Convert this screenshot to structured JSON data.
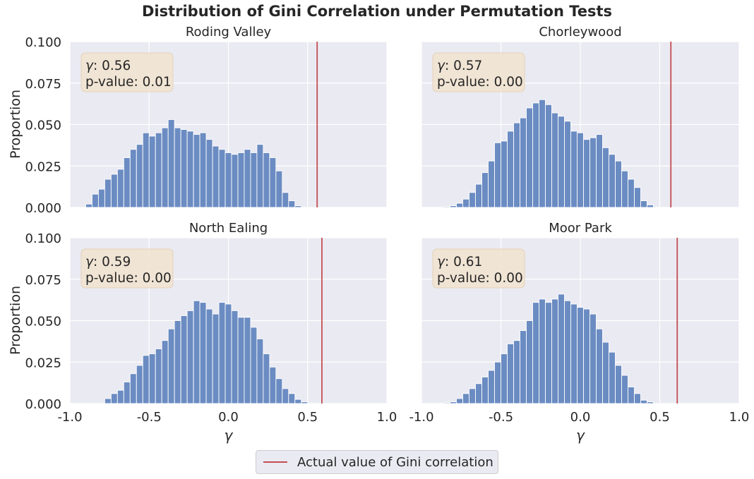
{
  "figure": {
    "title": "Distribution of Gini Correlation under Permutation Tests",
    "legend_label": "Actual value of Gini correlation",
    "colors": {
      "bar": "#6b8cc2",
      "actual_line": "#c44e52",
      "plot_bg": "#eaeaf2",
      "grid": "#ffffff",
      "annotation_box": "#f1e3cf"
    }
  },
  "chart_data": [
    {
      "type": "bar",
      "title": "Roding Valley",
      "ylabel": "Proportion",
      "xlabel": "",
      "xlim": [
        -1.0,
        1.0
      ],
      "ylim": [
        0.0,
        0.1
      ],
      "xticks": [
        "-1.0",
        "-0.5",
        "0.0",
        "0.5",
        "1.0"
      ],
      "yticks": [
        "0.000",
        "0.025",
        "0.050",
        "0.075",
        "0.100"
      ],
      "bin_start": -0.9,
      "bin_width": 0.04,
      "values": [
        0.002,
        0.008,
        0.011,
        0.017,
        0.02,
        0.023,
        0.03,
        0.035,
        0.038,
        0.045,
        0.043,
        0.045,
        0.048,
        0.053,
        0.048,
        0.047,
        0.046,
        0.044,
        0.045,
        0.041,
        0.037,
        0.035,
        0.033,
        0.032,
        0.033,
        0.035,
        0.033,
        0.038,
        0.033,
        0.03,
        0.022,
        0.009,
        0.004,
        0.001
      ],
      "actual_value": 0.56,
      "annotation": {
        "gamma_label": ": 0.56",
        "p_label": "p-value: 0.01"
      }
    },
    {
      "type": "bar",
      "title": "Chorleywood",
      "ylabel": "",
      "xlabel": "",
      "xlim": [
        -1.0,
        1.0
      ],
      "ylim": [
        0.0,
        0.1
      ],
      "xticks": [
        "-1.0",
        "-0.5",
        "0.0",
        "0.5",
        "1.0"
      ],
      "yticks": [
        "0.000",
        "0.025",
        "0.050",
        "0.075",
        "0.100"
      ],
      "bin_start": -0.86,
      "bin_width": 0.04,
      "values": [
        0.0005,
        0.001,
        0.0025,
        0.005,
        0.009,
        0.014,
        0.021,
        0.028,
        0.039,
        0.04,
        0.046,
        0.051,
        0.054,
        0.06,
        0.063,
        0.065,
        0.062,
        0.057,
        0.055,
        0.052,
        0.046,
        0.045,
        0.041,
        0.042,
        0.044,
        0.036,
        0.032,
        0.028,
        0.022,
        0.017,
        0.012,
        0.004,
        0.0015
      ],
      "actual_value": 0.57,
      "annotation": {
        "gamma_label": ": 0.57",
        "p_label": "p-value: 0.00"
      }
    },
    {
      "type": "bar",
      "title": "North Ealing",
      "ylabel": "Proportion",
      "xlabel": "γ",
      "xlim": [
        -1.0,
        1.0
      ],
      "ylim": [
        0.0,
        0.1
      ],
      "xticks": [
        "-1.0",
        "-0.5",
        "0.0",
        "0.5",
        "1.0"
      ],
      "yticks": [
        "0.000",
        "0.025",
        "0.050",
        "0.075",
        "0.100"
      ],
      "bin_start": -0.78,
      "bin_width": 0.04,
      "values": [
        0.003,
        0.006,
        0.008,
        0.013,
        0.018,
        0.023,
        0.029,
        0.03,
        0.033,
        0.038,
        0.045,
        0.05,
        0.053,
        0.056,
        0.062,
        0.061,
        0.057,
        0.054,
        0.061,
        0.06,
        0.056,
        0.052,
        0.052,
        0.046,
        0.039,
        0.03,
        0.022,
        0.015,
        0.009,
        0.006,
        0.0025,
        0.001
      ],
      "actual_value": 0.59,
      "annotation": {
        "gamma_label": ": 0.59",
        "p_label": "p-value: 0.00"
      }
    },
    {
      "type": "bar",
      "title": "Moor Park",
      "ylabel": "",
      "xlabel": "γ",
      "xlim": [
        -1.0,
        1.0
      ],
      "ylim": [
        0.0,
        0.1
      ],
      "xticks": [
        "-1.0",
        "-0.5",
        "0.0",
        "0.5",
        "1.0"
      ],
      "yticks": [
        "0.000",
        "0.025",
        "0.050",
        "0.075",
        "0.100"
      ],
      "bin_start": -0.86,
      "bin_width": 0.04,
      "values": [
        0.0005,
        0.001,
        0.003,
        0.006,
        0.009,
        0.012,
        0.016,
        0.02,
        0.025,
        0.03,
        0.036,
        0.038,
        0.044,
        0.05,
        0.061,
        0.063,
        0.061,
        0.063,
        0.066,
        0.062,
        0.06,
        0.058,
        0.057,
        0.054,
        0.045,
        0.037,
        0.031,
        0.023,
        0.017,
        0.01,
        0.006,
        0.002,
        0.001
      ],
      "actual_value": 0.61,
      "annotation": {
        "gamma_label": ": 0.61",
        "p_label": "p-value: 0.00"
      }
    }
  ]
}
